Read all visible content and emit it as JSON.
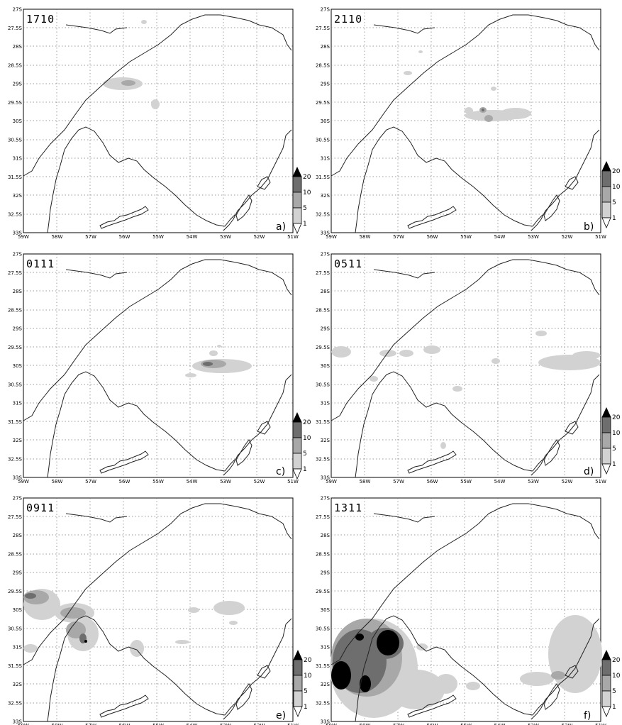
{
  "figure": {
    "x_ticks": [
      "59W",
      "58W",
      "57W",
      "56W",
      "55W",
      "54W",
      "53W",
      "52W",
      "51W"
    ],
    "y_ticks": [
      "27S",
      "27.5S",
      "28S",
      "28.5S",
      "29S",
      "29.5S",
      "30S",
      "30.5S",
      "31S",
      "31.5S",
      "32S",
      "32.5S",
      "33S"
    ],
    "legend_levels": [
      "1",
      "5",
      "10",
      "20"
    ],
    "shade_colors": {
      "1": "#d2d2d2",
      "5": "#a8a8a8",
      "10": "#6e6e6e",
      "20": "#000000"
    },
    "panels": [
      {
        "id": "a",
        "date": "1710",
        "letter": "a)"
      },
      {
        "id": "b",
        "date": "2110",
        "letter": "b)"
      },
      {
        "id": "c",
        "date": "0111",
        "letter": "c)"
      },
      {
        "id": "d",
        "date": "0511",
        "letter": "d)"
      },
      {
        "id": "e",
        "date": "0911",
        "letter": "e)"
      },
      {
        "id": "f",
        "date": "1311",
        "letter": "f)"
      }
    ]
  }
}
